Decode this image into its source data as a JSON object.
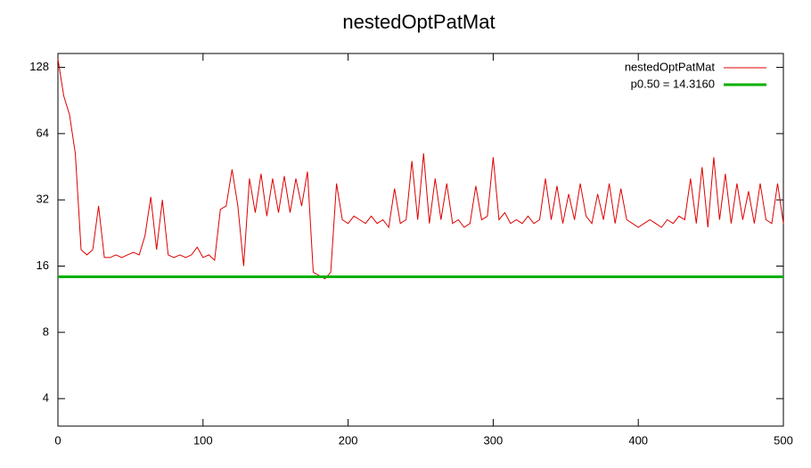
{
  "chart_data": {
    "type": "line",
    "title": "nestedOptPatMat",
    "x": [
      0,
      4,
      8,
      12,
      16,
      20,
      24,
      28,
      32,
      36,
      40,
      44,
      48,
      52,
      56,
      60,
      64,
      68,
      72,
      76,
      80,
      84,
      88,
      92,
      96,
      100,
      104,
      108,
      112,
      116,
      120,
      124,
      128,
      132,
      136,
      140,
      144,
      148,
      152,
      156,
      160,
      164,
      168,
      172,
      176,
      180,
      184,
      188,
      192,
      196,
      200,
      204,
      208,
      212,
      216,
      220,
      224,
      228,
      232,
      236,
      240,
      244,
      248,
      252,
      256,
      260,
      264,
      268,
      272,
      276,
      280,
      284,
      288,
      292,
      296,
      300,
      304,
      308,
      312,
      316,
      320,
      324,
      328,
      332,
      336,
      340,
      344,
      348,
      352,
      356,
      360,
      364,
      368,
      372,
      376,
      380,
      384,
      388,
      392,
      396,
      400,
      404,
      408,
      412,
      416,
      420,
      424,
      428,
      432,
      436,
      440,
      444,
      448,
      452,
      456,
      460,
      464,
      468,
      472,
      476,
      480,
      484,
      488,
      492,
      496,
      500
    ],
    "series": [
      {
        "name": "nestedOptPatMat",
        "color": "#dd0000",
        "values": [
          140,
          95,
          78,
          52,
          19,
          18,
          19,
          30,
          17.5,
          17.5,
          18,
          17.5,
          18,
          18.5,
          18,
          22,
          33,
          19,
          32,
          18,
          17.5,
          18,
          17.5,
          18,
          19.5,
          17.5,
          18,
          17,
          29,
          30,
          44,
          30,
          16,
          40,
          28,
          42,
          27,
          40,
          28,
          41,
          28,
          40,
          30,
          43,
          15,
          14.5,
          14,
          15,
          38,
          26,
          25,
          27,
          26,
          25,
          27,
          25,
          26,
          24,
          36,
          25,
          26,
          48,
          26,
          52,
          25,
          40,
          26,
          38,
          25,
          26,
          24,
          25,
          37,
          26,
          27,
          50,
          26,
          28,
          25,
          26,
          25,
          27,
          25,
          26,
          40,
          26,
          37,
          25,
          34,
          26,
          38,
          27,
          25,
          34,
          26,
          38,
          25,
          36,
          26,
          25,
          24,
          25,
          26,
          25,
          24,
          26,
          25,
          27,
          26,
          40,
          25,
          45,
          24,
          50,
          26,
          42,
          25,
          38,
          26,
          35,
          25,
          38,
          26,
          25,
          38,
          25
        ]
      }
    ],
    "hlines": [
      {
        "name": "p0.50 = 14.3160",
        "value": 14.316,
        "color": "#00b000"
      }
    ],
    "xlim": [
      0,
      500
    ],
    "xticks": [
      0,
      100,
      200,
      300,
      400,
      500
    ],
    "ylim": [
      3,
      148
    ],
    "yticks": [
      4,
      8,
      16,
      32,
      64,
      128
    ],
    "ylog_base": 2,
    "grid": false,
    "legend": "top-right"
  }
}
